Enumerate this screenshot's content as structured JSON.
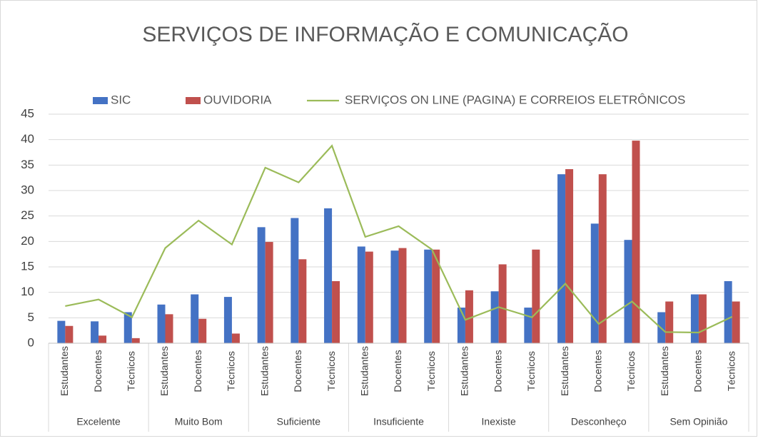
{
  "chart_data": {
    "type": "bar",
    "title": "SERVIÇOS DE INFORMAÇÃO E COMUNICAÇÃO",
    "groups": [
      "Excelente",
      "Muito Bom",
      "Suficiente",
      "Insuficiente",
      "Inexiste",
      "Desconheço",
      "Sem Opinião"
    ],
    "categories": [
      "Estudantes",
      "Docentes",
      "Técnicos",
      "Estudantes",
      "Docentes",
      "Técnicos",
      "Estudantes",
      "Docentes",
      "Técnicos",
      "Estudantes",
      "Docentes",
      "Técnicos",
      "Estudantes",
      "Docentes",
      "Técnicos",
      "Estudantes",
      "Docentes",
      "Técnicos",
      "Estudantes",
      "Docentes",
      "Técnicos"
    ],
    "series": [
      {
        "name": "SIC",
        "type": "bar",
        "color": "#4472c4",
        "values": [
          4.4,
          4.3,
          6.1,
          7.6,
          9.6,
          9.1,
          22.8,
          24.6,
          26.5,
          19.0,
          18.2,
          18.4,
          7.0,
          10.2,
          7.0,
          33.2,
          23.5,
          20.3,
          6.1,
          9.6,
          12.2
        ]
      },
      {
        "name": "OUVIDORIA",
        "type": "bar",
        "color": "#c0504d",
        "values": [
          3.4,
          1.5,
          1.0,
          5.7,
          4.8,
          1.9,
          19.9,
          16.5,
          12.2,
          18.0,
          18.7,
          18.4,
          10.4,
          15.5,
          18.4,
          34.2,
          33.2,
          39.8,
          8.2,
          9.6,
          8.2
        ]
      },
      {
        "name": "SERVIÇOS ON LINE (PAGINA) E CORREIOS ELETRÔNICOS",
        "type": "line",
        "color": "#9bbb59",
        "values": [
          7.3,
          8.6,
          5.1,
          18.7,
          24.1,
          19.4,
          34.5,
          31.6,
          38.8,
          20.9,
          23.0,
          18.4,
          4.6,
          7.1,
          5.1,
          11.7,
          3.8,
          8.2,
          2.2,
          2.1,
          5.2
        ]
      }
    ],
    "ylim": [
      0,
      45
    ],
    "yticks": [
      0,
      5,
      10,
      15,
      20,
      25,
      30,
      35,
      40,
      45
    ],
    "grid": true,
    "legend": "top"
  }
}
